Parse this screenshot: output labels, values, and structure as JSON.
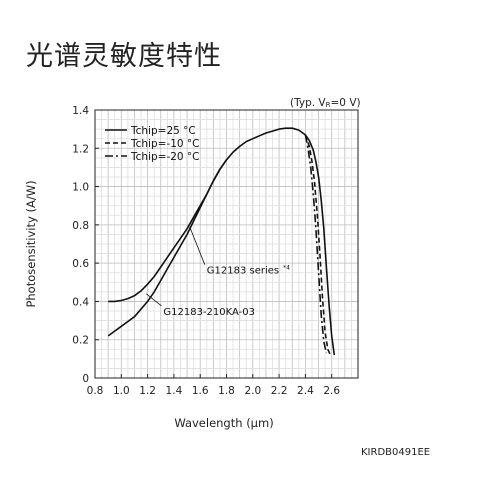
{
  "page": {
    "title": "光谱灵敏度特性",
    "conditions_prefix": "(Typ. V",
    "conditions_sub": "R",
    "conditions_suffix": "=0 V)",
    "figure_code": "KIRDB0491EE"
  },
  "chart_data": {
    "type": "line",
    "xlabel": "Wavelength (μm)",
    "ylabel": "Photosensitivity (A/W)",
    "xlim": [
      0.8,
      2.8
    ],
    "ylim": [
      0,
      1.4
    ],
    "x_ticks": [
      0.8,
      1.0,
      1.2,
      1.4,
      1.6,
      1.8,
      2.0,
      2.2,
      2.4,
      2.6
    ],
    "x_tick_labels": [
      "0.8",
      "1.0",
      "1.2",
      "1.4",
      "1.6",
      "1.8",
      "2.0",
      "2.2",
      "2.4",
      "2.6"
    ],
    "y_ticks": [
      0,
      0.2,
      0.4,
      0.6,
      0.8,
      1.0,
      1.2,
      1.4
    ],
    "y_tick_labels": [
      "0",
      "0.2",
      "0.4",
      "0.6",
      "0.8",
      "1.0",
      "1.2",
      "1.4"
    ],
    "grid": true,
    "legend_position": "top-left",
    "series": [
      {
        "name": "Tchip=25 °C",
        "style": "solid",
        "x": [
          0.9,
          0.95,
          1.0,
          1.05,
          1.1,
          1.15,
          1.2,
          1.25,
          1.3,
          1.35,
          1.4,
          1.45,
          1.5,
          1.55,
          1.6,
          1.65,
          1.7,
          1.75,
          1.8,
          1.85,
          1.9,
          1.95,
          2.0,
          2.05,
          2.1,
          2.15,
          2.2,
          2.25,
          2.3,
          2.35,
          2.4,
          2.43,
          2.46,
          2.48,
          2.5,
          2.52,
          2.54,
          2.56,
          2.58,
          2.6,
          2.62
        ],
        "y": [
          0.4,
          0.4,
          0.405,
          0.415,
          0.43,
          0.455,
          0.49,
          0.53,
          0.58,
          0.63,
          0.68,
          0.73,
          0.78,
          0.84,
          0.9,
          0.96,
          1.03,
          1.09,
          1.14,
          1.18,
          1.21,
          1.235,
          1.25,
          1.265,
          1.28,
          1.29,
          1.3,
          1.305,
          1.305,
          1.295,
          1.27,
          1.24,
          1.19,
          1.13,
          1.05,
          0.93,
          0.78,
          0.58,
          0.38,
          0.22,
          0.12
        ]
      },
      {
        "name": "Tchip=-10 °C",
        "style": "dashed",
        "x": [
          2.4,
          2.43,
          2.45,
          2.47,
          2.49,
          2.51,
          2.53,
          2.55,
          2.57,
          2.59
        ],
        "y": [
          1.27,
          1.21,
          1.13,
          1.02,
          0.86,
          0.65,
          0.42,
          0.24,
          0.15,
          0.12
        ]
      },
      {
        "name": "Tchip=-20 °C",
        "style": "dashdot",
        "x": [
          2.4,
          2.42,
          2.44,
          2.46,
          2.48,
          2.5,
          2.52,
          2.54,
          2.56
        ],
        "y": [
          1.27,
          1.2,
          1.1,
          0.96,
          0.78,
          0.55,
          0.33,
          0.19,
          0.13
        ]
      },
      {
        "name": "G12183-210KA-03",
        "style": "solid",
        "x": [
          0.9,
          0.95,
          1.0,
          1.05,
          1.1,
          1.15,
          1.2,
          1.25,
          1.3,
          1.35,
          1.4,
          1.45,
          1.5,
          1.55,
          1.6,
          1.65,
          1.7,
          1.75,
          1.8
        ],
        "y": [
          0.22,
          0.245,
          0.27,
          0.295,
          0.32,
          0.36,
          0.4,
          0.45,
          0.51,
          0.57,
          0.63,
          0.69,
          0.75,
          0.82,
          0.89,
          0.96,
          1.03,
          1.09,
          1.14
        ]
      }
    ],
    "annotations": [
      {
        "text": "G12183 series",
        "sup": "*4",
        "x": 1.65,
        "y": 0.545,
        "point_x": 1.52,
        "point_y": 0.79
      },
      {
        "text": "G12183-210KA-03",
        "x": 1.32,
        "y": 0.33,
        "point_x": 1.19,
        "point_y": 0.44
      }
    ]
  }
}
